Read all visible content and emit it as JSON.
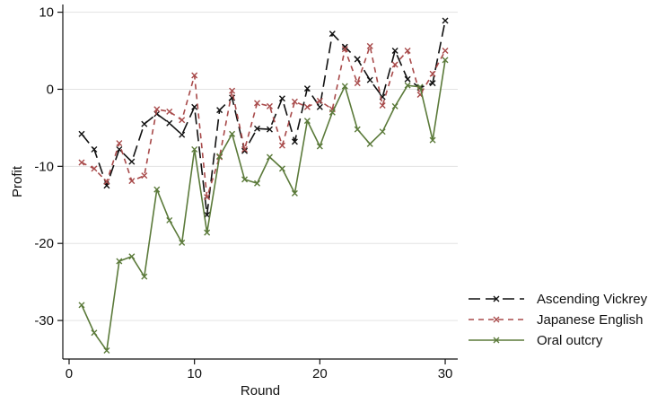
{
  "chart_data": {
    "type": "line",
    "title": "",
    "xlabel": "Round",
    "ylabel": "Profit",
    "xlim": [
      -0.5,
      31
    ],
    "ylim": [
      -35,
      11
    ],
    "xticks": [
      0,
      10,
      20,
      30
    ],
    "yticks": [
      10,
      0,
      -10,
      -20,
      -30
    ],
    "grid": "horizontal",
    "legend_position": "right",
    "x": [
      1,
      2,
      3,
      4,
      5,
      6,
      7,
      8,
      9,
      10,
      11,
      12,
      13,
      14,
      15,
      16,
      17,
      18,
      19,
      20,
      21,
      22,
      23,
      24,
      25,
      26,
      27,
      28,
      29,
      30
    ],
    "series": [
      {
        "name": "Ascending Vickrey",
        "color": "#111111",
        "dash": "long-dash",
        "marker": "x",
        "values": [
          -5.8,
          -7.8,
          -12.5,
          -7.8,
          -9.4,
          -4.5,
          -3.2,
          -4.4,
          -5.9,
          -2.3,
          -16.3,
          -2.7,
          -1.1,
          -8.0,
          -5.1,
          -5.2,
          -1.2,
          -6.8,
          0.1,
          -2.3,
          7.2,
          5.5,
          3.9,
          1.2,
          -1.0,
          5.0,
          1.3,
          0.2,
          0.8,
          8.9
        ]
      },
      {
        "name": "Japanese English",
        "color": "#a84a4a",
        "dash": "short-dash",
        "marker": "x",
        "values": [
          -9.5,
          -10.3,
          -12.0,
          -7.0,
          -11.9,
          -11.2,
          -2.6,
          -2.9,
          -4.0,
          1.8,
          -14.0,
          -8.8,
          -0.2,
          -7.8,
          -1.8,
          -2.2,
          -7.3,
          -1.6,
          -2.3,
          -1.5,
          -2.6,
          5.2,
          0.8,
          5.6,
          -2.1,
          3.2,
          5.0,
          -0.7,
          2.0,
          5.0
        ]
      },
      {
        "name": "Oral outcry",
        "color": "#5b7a3a",
        "dash": "solid",
        "marker": "x",
        "values": [
          -28.0,
          -31.6,
          -33.9,
          -22.3,
          -21.7,
          -24.3,
          -13.0,
          -17.0,
          -19.9,
          -7.8,
          -18.6,
          -8.7,
          -5.8,
          -11.7,
          -12.2,
          -8.8,
          -10.3,
          -13.5,
          -4.1,
          -7.4,
          -3.0,
          0.4,
          -5.2,
          -7.1,
          -5.5,
          -2.2,
          0.5,
          0.3,
          -6.6,
          3.8
        ]
      }
    ]
  }
}
